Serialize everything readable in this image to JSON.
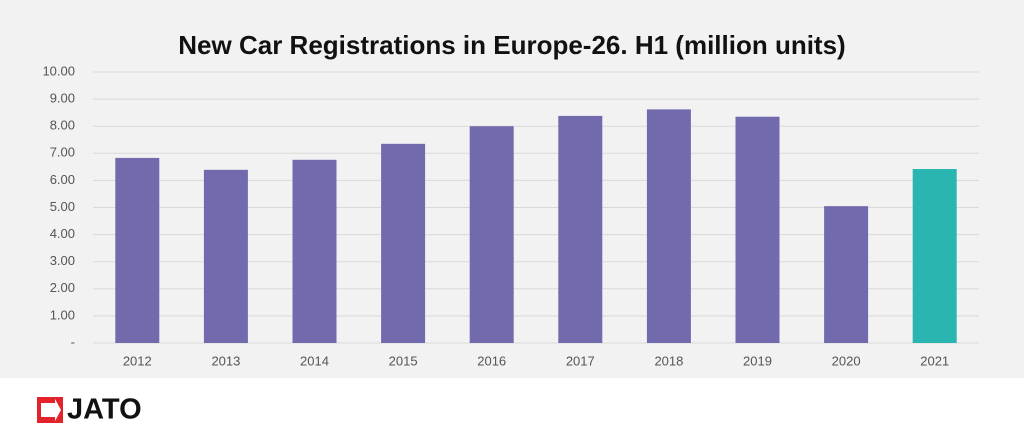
{
  "chart_data": {
    "type": "bar",
    "title": "New Car Registrations in Europe-26. H1 (million units)",
    "categories": [
      "2012",
      "2013",
      "2014",
      "2015",
      "2016",
      "2017",
      "2018",
      "2019",
      "2020",
      "2021"
    ],
    "values": [
      6.83,
      6.39,
      6.76,
      7.35,
      8.0,
      8.38,
      8.62,
      8.35,
      5.05,
      6.42
    ],
    "colors": [
      "#716bae",
      "#716bae",
      "#716bae",
      "#716bae",
      "#716bae",
      "#716bae",
      "#716bae",
      "#716bae",
      "#716bae",
      "#2bb5b0"
    ],
    "ylim": [
      0,
      10
    ],
    "yticks": [
      {
        "value": 0,
        "label": "-"
      },
      {
        "value": 1,
        "label": "1.00"
      },
      {
        "value": 2,
        "label": "2.00"
      },
      {
        "value": 3,
        "label": "3.00"
      },
      {
        "value": 4,
        "label": "4.00"
      },
      {
        "value": 5,
        "label": "5.00"
      },
      {
        "value": 6,
        "label": "6.00"
      },
      {
        "value": 7,
        "label": "7.00"
      },
      {
        "value": 8,
        "label": "8.00"
      },
      {
        "value": 9,
        "label": "9.00"
      },
      {
        "value": 10,
        "label": "10.00"
      }
    ],
    "grid": true
  },
  "logo": {
    "text": "JATO"
  }
}
